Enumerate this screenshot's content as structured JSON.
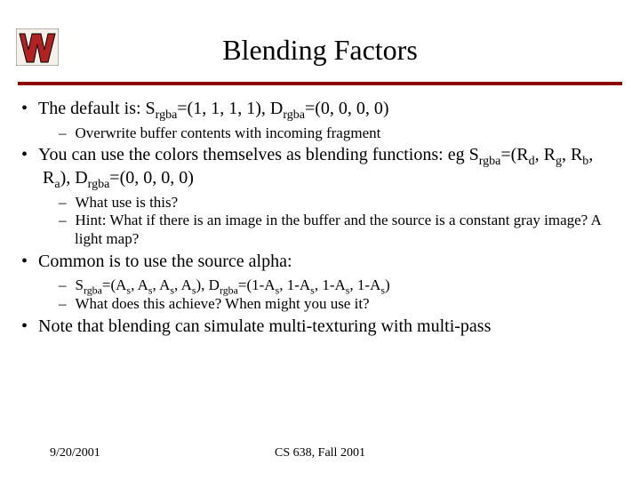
{
  "logo": {
    "fill": "#b22222",
    "outline": "#000000",
    "bg": "#f5f0e8"
  },
  "title": "Blending Factors",
  "divider_color": "#8b0000",
  "bullets": [
    {
      "text_parts": [
        "The default is: S",
        "rgba",
        "=(1, 1, 1, 1), D",
        "rgba",
        "=(0, 0, 0, 0)"
      ],
      "sub": [
        "Overwrite buffer contents with incoming fragment"
      ]
    },
    {
      "text_parts": [
        "You can use the colors themselves as blending functions: eg S",
        "rgba",
        "=(R",
        "d",
        ", R",
        "g",
        ", R",
        "b",
        ", R",
        "a",
        "), D",
        "rgba",
        "=(0, 0, 0, 0)"
      ],
      "sub": [
        "What use is this?",
        "Hint: What if there is an image in the buffer and the source is a constant gray image? A light map?"
      ]
    },
    {
      "text_parts": [
        "Common is to use the source alpha:"
      ],
      "sub": [
        {
          "parts": [
            "S",
            "rgba",
            "=(A",
            "s",
            ", A",
            "s",
            ", A",
            "s",
            ", A",
            "s",
            "), D",
            "rgba",
            "=(1-A",
            "s",
            ", 1-A",
            "s",
            ", 1-A",
            "s",
            ", 1-A",
            "s",
            ")"
          ]
        },
        "What does this achieve? When might you use it?"
      ]
    },
    {
      "text_parts": [
        "Note that blending can simulate multi-texturing with multi-pass"
      ],
      "sub": []
    }
  ],
  "footer": {
    "date": "9/20/2001",
    "course": "CS 638, Fall 2001"
  }
}
